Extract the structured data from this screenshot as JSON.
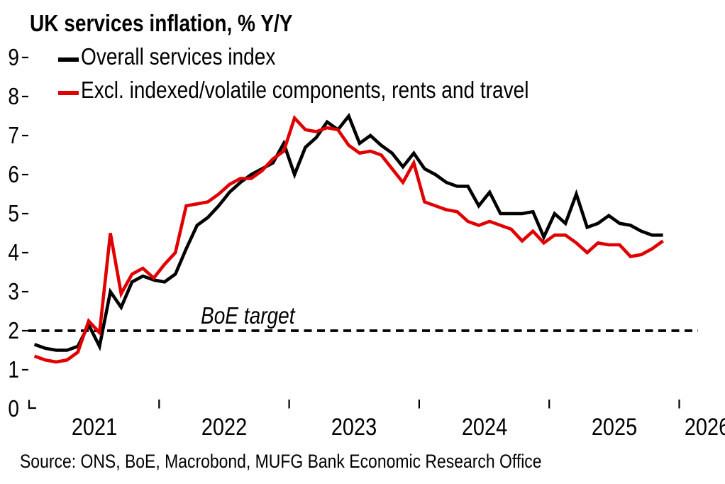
{
  "title": "UK services inflation, % Y/Y",
  "legend": [
    {
      "label": "Overall services index",
      "color": "#000000"
    },
    {
      "label": "Excl. indexed/volatile components, rents and travel",
      "color": "#e10000"
    }
  ],
  "annotation": {
    "label": "BoE target",
    "value": 2
  },
  "source": "Source: ONS, BoE, Macrobond, MUFG Bank Economic Research Office",
  "chart_data": {
    "type": "line",
    "title": "UK services inflation, % Y/Y",
    "xlabel": "",
    "ylabel": "",
    "ylim": [
      0,
      9
    ],
    "y_ticks": [
      0,
      1,
      2,
      3,
      4,
      5,
      6,
      7,
      8,
      9
    ],
    "x_year_labels": [
      "2021",
      "2022",
      "2023",
      "2024",
      "2025",
      "2026"
    ],
    "grid": false,
    "legend_position": "top-left-inside",
    "target_line": {
      "label": "BoE target",
      "value": 2,
      "style": "dashed",
      "color": "#000000"
    },
    "x": [
      "2021-01",
      "2021-02",
      "2021-03",
      "2021-04",
      "2021-05",
      "2021-06",
      "2021-07",
      "2021-08",
      "2021-09",
      "2021-10",
      "2021-11",
      "2021-12",
      "2022-01",
      "2022-02",
      "2022-03",
      "2022-04",
      "2022-05",
      "2022-06",
      "2022-07",
      "2022-08",
      "2022-09",
      "2022-10",
      "2022-11",
      "2022-12",
      "2023-01",
      "2023-02",
      "2023-03",
      "2023-04",
      "2023-05",
      "2023-06",
      "2023-07",
      "2023-08",
      "2023-09",
      "2023-10",
      "2023-11",
      "2023-12",
      "2024-01",
      "2024-02",
      "2024-03",
      "2024-04",
      "2024-05",
      "2024-06",
      "2024-07",
      "2024-08",
      "2024-09",
      "2024-10",
      "2024-11",
      "2024-12",
      "2025-01",
      "2025-02",
      "2025-03",
      "2025-04",
      "2025-05",
      "2025-06",
      "2025-07",
      "2025-08",
      "2025-09",
      "2025-10",
      "2025-11"
    ],
    "series": [
      {
        "name": "Overall services index",
        "color": "#000000",
        "values": [
          1.65,
          1.55,
          1.5,
          1.5,
          1.6,
          2.15,
          1.6,
          3.0,
          2.6,
          3.25,
          3.4,
          3.3,
          3.25,
          3.45,
          4.1,
          4.7,
          4.9,
          5.2,
          5.55,
          5.8,
          6.0,
          6.15,
          6.3,
          6.8,
          6.0,
          6.7,
          6.95,
          7.35,
          7.15,
          7.5,
          6.8,
          7.0,
          6.75,
          6.55,
          6.2,
          6.55,
          6.15,
          6.0,
          5.8,
          5.7,
          5.7,
          5.2,
          5.55,
          5.0,
          5.0,
          5.0,
          5.05,
          4.4,
          5.0,
          4.75,
          5.5,
          4.65,
          4.75,
          4.95,
          4.75,
          4.7,
          4.55,
          4.45,
          4.45
        ]
      },
      {
        "name": "Excl. indexed/volatile components, rents and travel",
        "color": "#e10000",
        "values": [
          1.35,
          1.25,
          1.2,
          1.25,
          1.45,
          2.25,
          1.95,
          4.5,
          2.95,
          3.45,
          3.6,
          3.35,
          3.7,
          4.0,
          5.2,
          5.25,
          5.3,
          5.5,
          5.75,
          5.9,
          5.9,
          6.1,
          6.4,
          6.6,
          7.45,
          7.15,
          7.1,
          7.2,
          7.15,
          6.75,
          6.55,
          6.6,
          6.5,
          6.15,
          5.8,
          6.3,
          5.3,
          5.2,
          5.1,
          5.05,
          4.8,
          4.7,
          4.8,
          4.7,
          4.6,
          4.3,
          4.55,
          4.25,
          4.45,
          4.45,
          4.25,
          4.0,
          4.25,
          4.2,
          4.2,
          3.9,
          3.95,
          4.1,
          4.3
        ]
      }
    ]
  }
}
